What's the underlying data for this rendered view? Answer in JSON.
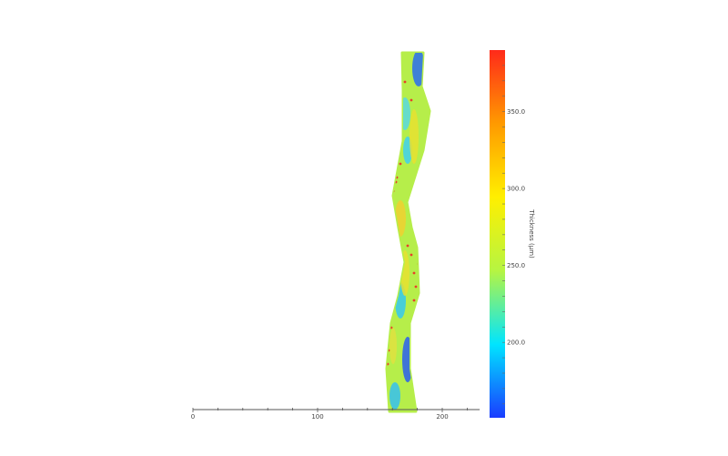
{
  "chart_data": {
    "type": "heatmap",
    "title": "",
    "xlabel": "",
    "ylabel": "",
    "xlim": [
      0,
      230
    ],
    "x_ticks": [
      "0",
      "100",
      "200"
    ],
    "x_minor_step": 20,
    "colorbar": {
      "label": "Thickness (µm)",
      "range": [
        151,
        390
      ],
      "ticks": [
        "200.0",
        "250.0",
        "300.0",
        "350.0"
      ],
      "colormap": "jet",
      "colors": [
        "#1a3cff",
        "#00e5ff",
        "#b6f542",
        "#ffef00",
        "#ff9a00",
        "#ff2a1a"
      ]
    },
    "grid": false,
    "description_colors": {
      "dominant": "#b6ee4a",
      "low_patches": "#2a6cf0",
      "high_dots": "#e8402a"
    }
  }
}
